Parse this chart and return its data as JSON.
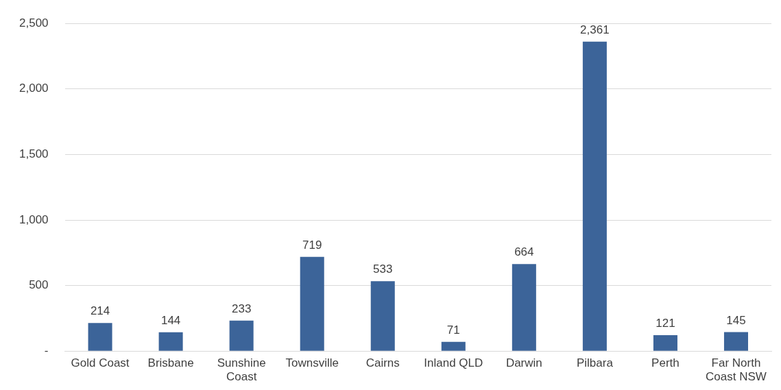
{
  "chart_data": {
    "type": "bar",
    "categories": [
      "Gold Coast",
      "Brisbane",
      "Sunshine Coast",
      "Townsville",
      "Cairns",
      "Inland QLD",
      "Darwin",
      "Pilbara",
      "Perth",
      "Far North Coast NSW"
    ],
    "values": [
      214,
      144,
      233,
      719,
      533,
      71,
      664,
      2361,
      121,
      145
    ],
    "value_labels": [
      "214",
      "144",
      "233",
      "719",
      "533",
      "71",
      "664",
      "2,361",
      "121",
      "145"
    ],
    "color": "#3c6499",
    "ylim": [
      0,
      2500
    ],
    "yticks": [
      {
        "value": 0,
        "label": "-"
      },
      {
        "value": 500,
        "label": "500"
      },
      {
        "value": 1000,
        "label": "1,000"
      },
      {
        "value": 1500,
        "label": "1,500"
      },
      {
        "value": 2000,
        "label": "2,000"
      },
      {
        "value": 2500,
        "label": "2,500"
      }
    ],
    "grid": "y"
  }
}
